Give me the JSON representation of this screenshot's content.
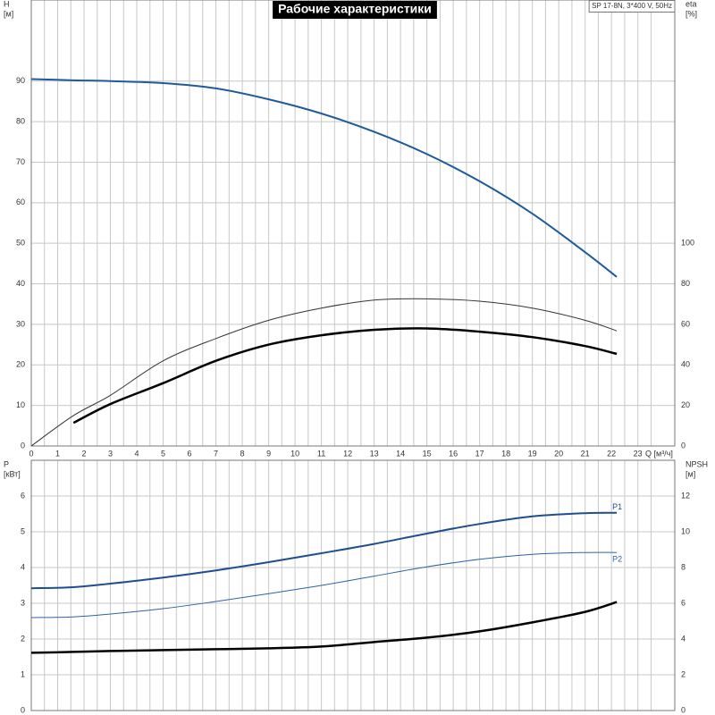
{
  "chart_data": [
    {
      "type": "line",
      "title": "Рабочие характеристики",
      "subtitle": "SP 17-8N, 3*400 V, 50Hz",
      "ylabel": [
        "H",
        "[м]"
      ],
      "y2label": [
        "eta",
        "[%]"
      ],
      "xlabel": "Q [м³/ч]",
      "x": [
        0,
        1.6,
        3,
        5,
        7,
        9,
        11,
        13,
        15,
        17,
        19,
        21,
        22.2
      ],
      "xlim": [
        0,
        24.4
      ],
      "xticks": [
        0,
        1,
        2,
        3,
        4,
        5,
        6,
        7,
        8,
        9,
        10,
        11,
        12,
        13,
        14,
        15,
        16,
        17,
        18,
        19,
        20,
        21,
        22,
        23
      ],
      "ylim": [
        0,
        110
      ],
      "yticks": [
        0,
        10,
        20,
        30,
        40,
        50,
        60,
        70,
        80,
        90
      ],
      "y2lim": [
        0,
        220
      ],
      "y2ticks": [
        0,
        20,
        40,
        60,
        80,
        100
      ],
      "grid": true,
      "series": [
        {
          "color": "#1f5a99",
          "width": 2,
          "values": [
            90.5,
            90.2,
            90,
            89.5,
            88.2,
            85.5,
            82,
            77.5,
            72,
            65.3,
            57.3,
            47.8,
            41.7
          ]
        },
        {
          "color": "#333333",
          "width": 1,
          "axis": "y2",
          "values": [
            0,
            15,
            25,
            42,
            53,
            62,
            68,
            72,
            72.6,
            71.4,
            68,
            62,
            56.8
          ]
        },
        {
          "color": "#000000",
          "width": 2.5,
          "axis": "y2",
          "values": [
            null,
            11.4,
            20.7,
            31,
            42,
            50,
            54.6,
            57.3,
            58,
            56.4,
            53.7,
            49.3,
            45.4
          ]
        }
      ]
    },
    {
      "type": "line",
      "ylabel": [
        "P",
        "[кВт]"
      ],
      "y2label": [
        "NPSH",
        "[м]"
      ],
      "x": [
        0,
        1.6,
        3,
        5,
        7,
        9,
        11,
        13,
        15,
        17,
        19,
        21,
        22.2
      ],
      "xlim": [
        0,
        24.4
      ],
      "ylim": [
        0,
        7
      ],
      "yticks": [
        0,
        1,
        2,
        3,
        4,
        5,
        6
      ],
      "y2lim": [
        0,
        14
      ],
      "y2ticks": [
        0,
        2,
        4,
        6,
        8,
        10,
        12
      ],
      "grid": true,
      "series": [
        {
          "name": "P1",
          "color": "#1f4e8c",
          "width": 2,
          "values": [
            3.42,
            3.45,
            3.55,
            3.72,
            3.92,
            4.15,
            4.4,
            4.66,
            4.95,
            5.22,
            5.43,
            5.52,
            5.53
          ]
        },
        {
          "name": "P2",
          "color": "#2d62a8",
          "width": 1,
          "values": [
            2.6,
            2.62,
            2.7,
            2.85,
            3.05,
            3.27,
            3.5,
            3.76,
            4.02,
            4.23,
            4.37,
            4.42,
            4.42
          ]
        },
        {
          "color": "#000000",
          "width": 2.5,
          "axis": "y2",
          "values": [
            3.23,
            3.28,
            3.33,
            3.38,
            3.43,
            3.48,
            3.58,
            3.83,
            4.08,
            4.43,
            4.93,
            5.52,
            6.07
          ]
        }
      ]
    }
  ]
}
